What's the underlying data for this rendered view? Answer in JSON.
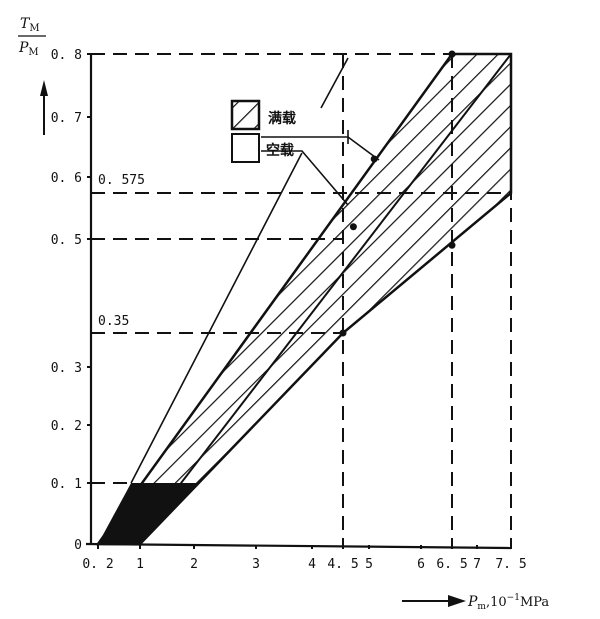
{
  "chart_data": {
    "type": "area",
    "ylabel_num": "T",
    "ylabel_num_sub": "M",
    "ylabel_den": "P",
    "ylabel_den_sub": "M",
    "xlabel_var": "P",
    "xlabel_sub": "m",
    "xlabel_unit": ",10",
    "xlabel_exp": "−1",
    "xlabel_unit2": "MPa",
    "x_ticks": [
      {
        "value": 0.2,
        "label": "0. 2"
      },
      {
        "value": 1,
        "label": "1"
      },
      {
        "value": 2,
        "label": "2"
      },
      {
        "value": 3,
        "label": "3"
      },
      {
        "value": 4,
        "label": "4"
      },
      {
        "value": 4.5,
        "label": "4. 5"
      },
      {
        "value": 5,
        "label": "5"
      },
      {
        "value": 6,
        "label": "6"
      },
      {
        "value": 6.5,
        "label": "6. 5"
      },
      {
        "value": 7,
        "label": "7"
      },
      {
        "value": 7.5,
        "label": "7. 5"
      }
    ],
    "y_ticks": [
      {
        "value": 0,
        "label": "0"
      },
      {
        "value": 0.1,
        "label": "0. 1"
      },
      {
        "value": 0.2,
        "label": "0. 2"
      },
      {
        "value": 0.3,
        "label": "0. 3"
      },
      {
        "value": 0.5,
        "label": "0. 5"
      },
      {
        "value": 0.6,
        "label": "0. 6"
      },
      {
        "value": 0.7,
        "label": "0. 7"
      },
      {
        "value": 0.8,
        "label": "0. 8"
      }
    ],
    "annotations": [
      {
        "y": 0.575,
        "label": "0. 575"
      },
      {
        "y": 0.35,
        "label": "0.35"
      }
    ],
    "xlim": [
      0,
      7.5
    ],
    "ylim": [
      0,
      0.8
    ],
    "legend": [
      {
        "name": "满载",
        "fill": "hatched"
      },
      {
        "name": "空载",
        "fill": "empty"
      }
    ],
    "full_load_band": {
      "upper_boundary": [
        [
          0.2,
          0
        ],
        [
          6.5,
          0.8
        ]
      ],
      "lower_boundary": [
        [
          1,
          0
        ],
        [
          4.5,
          0.35
        ],
        [
          7.5,
          0.575
        ]
      ],
      "right_boundary": [
        [
          7.5,
          0.575
        ],
        [
          7.5,
          0.8
        ]
      ]
    },
    "low_region_solid": [
      [
        0.2,
        0
      ],
      [
        0.83,
        0.1
      ],
      [
        2.1,
        0.1
      ],
      [
        1,
        0
      ]
    ],
    "middle_line": [
      [
        1.5,
        0.07
      ],
      [
        7.5,
        0.8
      ]
    ],
    "empty_load_line": [
      [
        0.83,
        0.1
      ],
      [
        3.82,
        0.64
      ]
    ],
    "reference_dashed": {
      "horizontal": [
        0.8,
        0.575,
        0.5,
        0.35,
        0.1
      ],
      "vertical": [
        4.5,
        6.5,
        7.5
      ]
    },
    "marked_points": [
      [
        4.5,
        0.35
      ],
      [
        4.7,
        0.52
      ],
      [
        5.1,
        0.63
      ],
      [
        6.5,
        0.8
      ],
      [
        6.5,
        0.49
      ]
    ],
    "colors": {
      "ink": "#111111",
      "background": "#ffffff"
    }
  }
}
